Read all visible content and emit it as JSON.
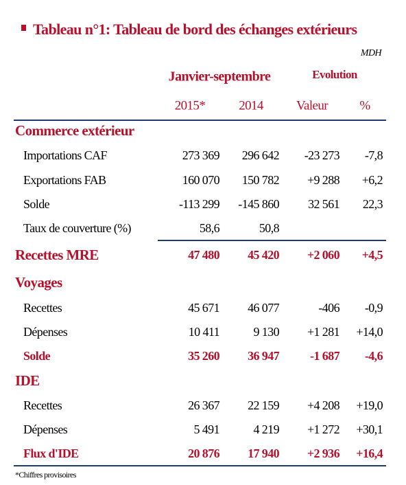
{
  "header": {
    "title": "Tableau n°1: Tableau de bord des échanges extérieurs",
    "unit": "MDH",
    "period": "Janvier-septembre",
    "evolution": "Evolution",
    "columns": [
      "2015*",
      "2014",
      "Valeur",
      "%"
    ]
  },
  "table": {
    "rows": [
      {
        "kind": "section",
        "label": "Commerce extérieur"
      },
      {
        "kind": "row",
        "label": "Importations CAF",
        "cells": [
          "273 369",
          "296 642",
          "-23 273",
          "-7,8"
        ]
      },
      {
        "kind": "row",
        "label": "Exportations FAB",
        "cells": [
          "160 070",
          "150 782",
          "+9 288",
          "+6,2"
        ]
      },
      {
        "kind": "row",
        "label": "Solde",
        "cells": [
          "-113 299",
          "-145 860",
          "32 561",
          "22,3"
        ]
      },
      {
        "kind": "row",
        "label": "Taux de couverture (%)",
        "cells": [
          "58,6",
          "50,8"
        ]
      },
      {
        "kind": "section",
        "label": "Recettes MRE",
        "cells": [
          "47 480",
          "45 420",
          "+2 060",
          "+4,5"
        ]
      },
      {
        "kind": "section",
        "label": "Voyages"
      },
      {
        "kind": "row",
        "label": "Recettes",
        "cells": [
          "45 671",
          "46 077",
          "-406",
          "-0,9"
        ]
      },
      {
        "kind": "row",
        "label": "Dépenses",
        "cells": [
          "10 411",
          "9 130",
          "+1 281",
          "+14,0"
        ]
      },
      {
        "kind": "total",
        "label": "Solde",
        "cells": [
          "35 260",
          "36 947",
          "-1 687",
          "-4,6"
        ]
      },
      {
        "kind": "section",
        "label": "IDE"
      },
      {
        "kind": "row",
        "label": "Recettes",
        "cells": [
          "26 367",
          "22 159",
          "+4 208",
          "+19,0"
        ]
      },
      {
        "kind": "row",
        "label": "Dépenses",
        "cells": [
          "5 491",
          "4 219",
          "+1 272",
          "+30,1"
        ]
      },
      {
        "kind": "total",
        "label": "Flux d'IDE",
        "cells": [
          "20 876",
          "17 940",
          "+2 936",
          "+16,4"
        ]
      }
    ]
  },
  "footnote": "*Chiffres provisoires"
}
